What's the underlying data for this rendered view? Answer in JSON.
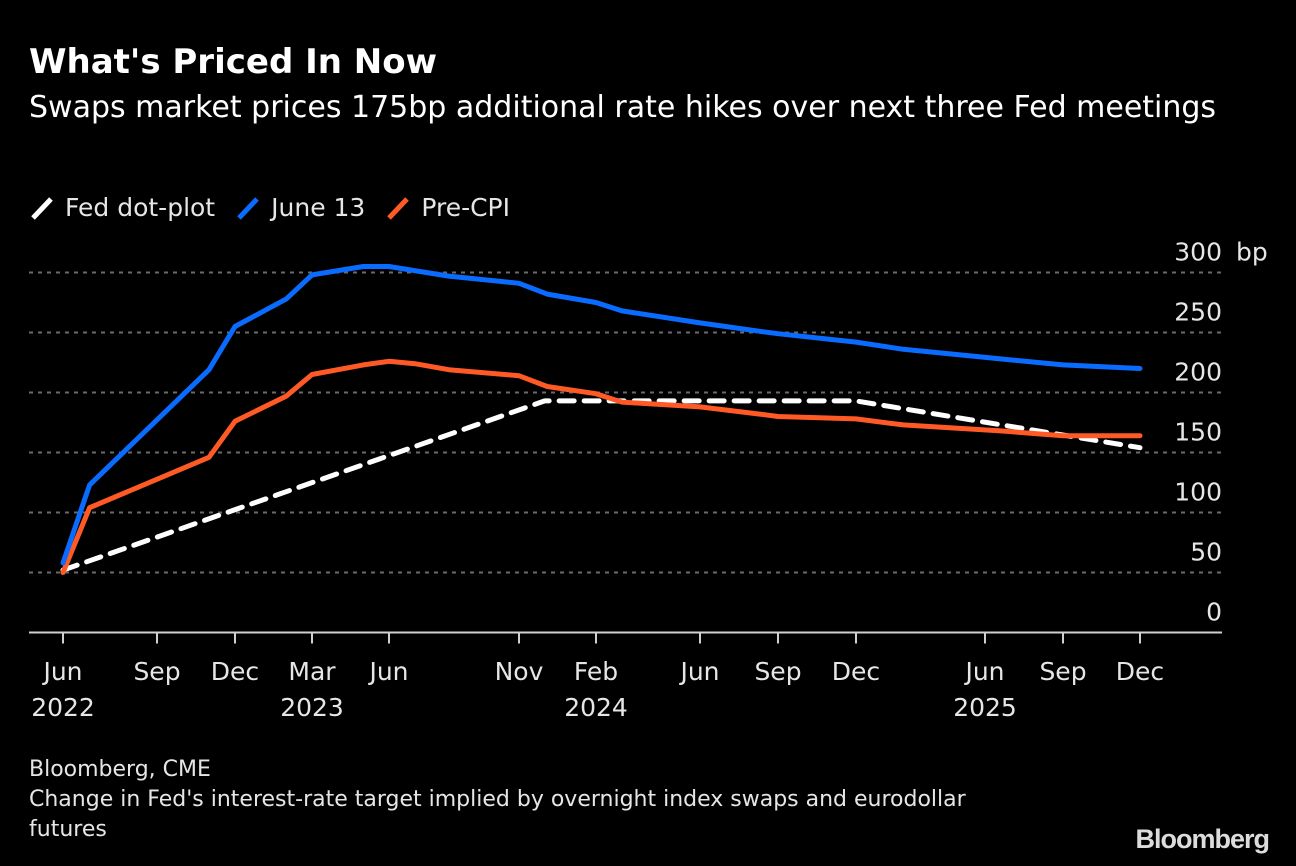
{
  "header": {
    "title": "What's Priced In Now",
    "subtitle": "Swaps market prices 175bp additional rate hikes over next three Fed meetings"
  },
  "legend": [
    {
      "label": "Fed dot-plot",
      "color": "#ffffff",
      "series": "dot_plot"
    },
    {
      "label": "June 13",
      "color": "#0a6cff",
      "series": "june13"
    },
    {
      "label": "Pre-CPI",
      "color": "#ff5a26",
      "series": "pre_cpi"
    }
  ],
  "footer": {
    "source": "Bloomberg, CME",
    "note": "Change in Fed's interest-rate target implied by overnight index swaps and eurodollar futures",
    "brand": "Bloomberg"
  },
  "chart_data": {
    "type": "line",
    "title": "What's Priced In Now",
    "subtitle": "Swaps market prices 175bp additional rate hikes over next three Fed meetings",
    "xlabel": "",
    "ylabel": "bp",
    "x_unit": "months since Jun 2022",
    "ylim": [
      0,
      300
    ],
    "y_ticks": [
      0,
      50,
      100,
      150,
      200,
      250,
      300
    ],
    "y_tick_labels": [
      "0",
      "50",
      "100",
      "150",
      "200",
      "250",
      "300 bp"
    ],
    "grid": true,
    "legend_position": "top-left",
    "x_ticks": [
      {
        "x": 0,
        "label": "Jun",
        "year": "2022"
      },
      {
        "x": 3,
        "label": "Sep",
        "year": ""
      },
      {
        "x": 6,
        "label": "Dec",
        "year": ""
      },
      {
        "x": 9,
        "label": "Mar",
        "year": "2023"
      },
      {
        "x": 12,
        "label": "Jun",
        "year": ""
      },
      {
        "x": 17,
        "label": "Nov",
        "year": ""
      },
      {
        "x": 20,
        "label": "Feb",
        "year": "2024"
      },
      {
        "x": 24,
        "label": "Jun",
        "year": ""
      },
      {
        "x": 27,
        "label": "Sep",
        "year": ""
      },
      {
        "x": 30,
        "label": "Dec",
        "year": ""
      },
      {
        "x": 36,
        "label": "Jun",
        "year": "2025"
      },
      {
        "x": 39,
        "label": "Sep",
        "year": ""
      },
      {
        "x": 42,
        "label": "Dec",
        "year": ""
      }
    ],
    "series": [
      {
        "name": "Fed dot-plot",
        "key": "dot_plot",
        "color": "#ffffff",
        "style": "dashed",
        "x": [
          0,
          18,
          30,
          42
        ],
        "values": [
          52,
          193,
          193,
          154
        ]
      },
      {
        "name": "June 13",
        "key": "june13",
        "color": "#0a6cff",
        "style": "solid",
        "x": [
          0,
          0.85,
          5,
          6,
          8,
          9,
          11,
          12,
          14.3,
          17,
          18.1,
          20,
          21,
          24,
          26.3,
          27,
          30,
          32.2,
          36.6,
          39,
          42
        ],
        "values": [
          58,
          123,
          219,
          255,
          278,
          298,
          305,
          305,
          297,
          291,
          282,
          275,
          268,
          258,
          251,
          249,
          242,
          236,
          228,
          223,
          220
        ]
      },
      {
        "name": "Pre-CPI",
        "key": "pre_cpi",
        "color": "#ff5a26",
        "style": "solid",
        "x": [
          0,
          0.85,
          5,
          6,
          8,
          9,
          11,
          12,
          13,
          14.3,
          17,
          18.1,
          20,
          21,
          24,
          26.3,
          27,
          30,
          32.2,
          36.6,
          39,
          42
        ],
        "values": [
          50,
          104,
          146,
          176,
          197,
          215,
          223,
          226,
          224,
          219,
          214,
          205,
          199,
          192,
          188,
          182,
          180,
          178,
          173,
          168,
          164,
          164
        ]
      }
    ]
  }
}
